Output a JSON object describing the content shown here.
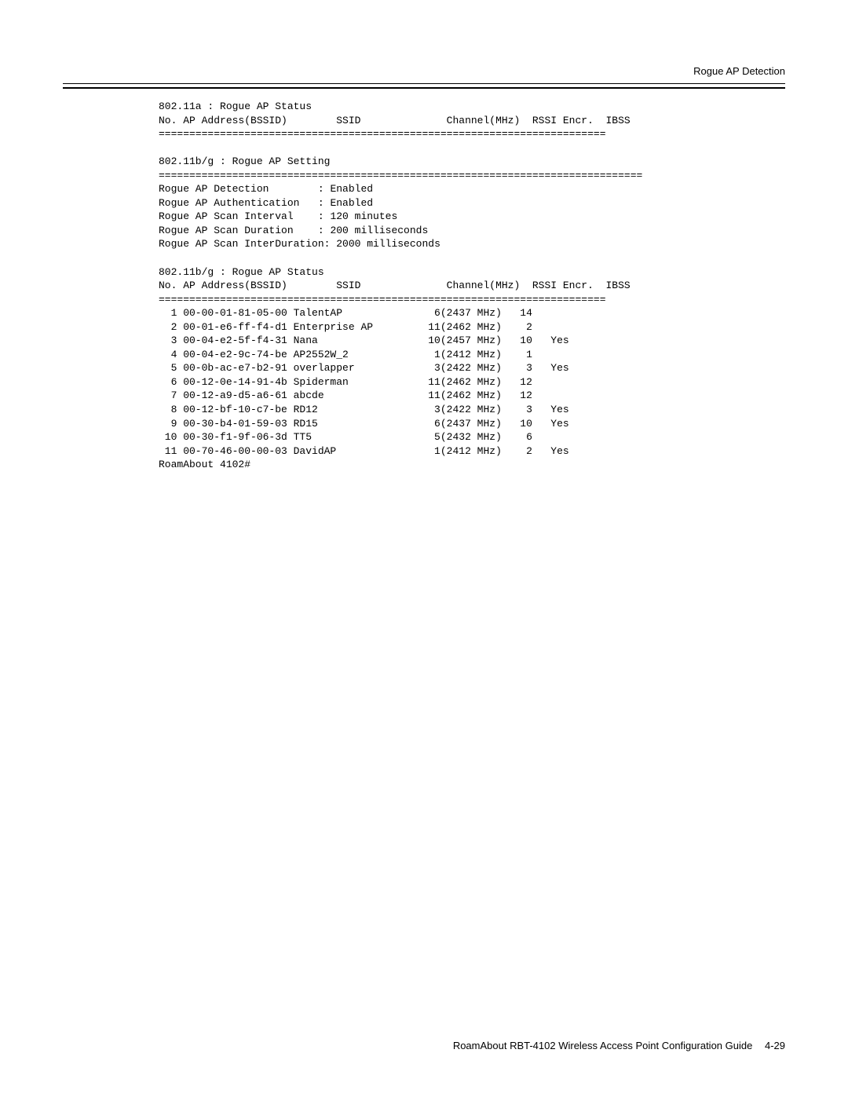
{
  "header": {
    "title": "Rogue AP Detection"
  },
  "terminal": {
    "section_11a": {
      "title": "802.11a : Rogue AP Status",
      "header_line": "No. AP Address(BSSID)        SSID              Channel(MHz)  RSSI Encr.  IBSS",
      "divider": "========================================================================="
    },
    "section_setting": {
      "title": "802.11b/g : Rogue AP Setting",
      "divider": "===============================================================================",
      "rows": [
        {
          "label": "Rogue AP Detection        ",
          "value": ": Enabled"
        },
        {
          "label": "Rogue AP Authentication   ",
          "value": ": Enabled"
        },
        {
          "label": "Rogue AP Scan Interval    ",
          "value": ": 120 minutes"
        },
        {
          "label": "Rogue AP Scan Duration    ",
          "value": ": 200 milliseconds"
        },
        {
          "label": "Rogue AP Scan InterDuration",
          "value": ": 2000 milliseconds"
        }
      ]
    },
    "section_11bg": {
      "title": "802.11b/g : Rogue AP Status",
      "header_line": "No. AP Address(BSSID)        SSID              Channel(MHz)  RSSI Encr.  IBSS",
      "divider": "=========================================================================",
      "rows": [
        {
          "no": "1",
          "bssid": "00-00-01-81-05-00",
          "ssid": "TalentAP",
          "channel": "6(2437 MHz)",
          "rssi": "14",
          "encr": ""
        },
        {
          "no": "2",
          "bssid": "00-01-e6-ff-f4-d1",
          "ssid": "Enterprise AP",
          "channel": "11(2462 MHz)",
          "rssi": "2",
          "encr": ""
        },
        {
          "no": "3",
          "bssid": "00-04-e2-5f-f4-31",
          "ssid": "Nana",
          "channel": "10(2457 MHz)",
          "rssi": "10",
          "encr": "Yes"
        },
        {
          "no": "4",
          "bssid": "00-04-e2-9c-74-be",
          "ssid": "AP2552W_2",
          "channel": "1(2412 MHz)",
          "rssi": "1",
          "encr": ""
        },
        {
          "no": "5",
          "bssid": "00-0b-ac-e7-b2-91",
          "ssid": "overlapper",
          "channel": "3(2422 MHz)",
          "rssi": "3",
          "encr": "Yes"
        },
        {
          "no": "6",
          "bssid": "00-12-0e-14-91-4b",
          "ssid": "Spiderman",
          "channel": "11(2462 MHz)",
          "rssi": "12",
          "encr": ""
        },
        {
          "no": "7",
          "bssid": "00-12-a9-d5-a6-61",
          "ssid": "abcde",
          "channel": "11(2462 MHz)",
          "rssi": "12",
          "encr": ""
        },
        {
          "no": "8",
          "bssid": "00-12-bf-10-c7-be",
          "ssid": "RD12",
          "channel": "3(2422 MHz)",
          "rssi": "3",
          "encr": "Yes"
        },
        {
          "no": "9",
          "bssid": "00-30-b4-01-59-03",
          "ssid": "RD15",
          "channel": "6(2437 MHz)",
          "rssi": "10",
          "encr": "Yes"
        },
        {
          "no": "10",
          "bssid": "00-30-f1-9f-06-3d",
          "ssid": "TT5",
          "channel": "5(2432 MHz)",
          "rssi": "6",
          "encr": ""
        },
        {
          "no": "11",
          "bssid": "00-70-46-00-00-03",
          "ssid": "DavidAP",
          "channel": "1(2412 MHz)",
          "rssi": "2",
          "encr": "Yes"
        }
      ]
    },
    "prompt": "RoamAbout 4102#"
  },
  "footer": {
    "text": "RoamAbout RBT-4102 Wireless Access Point Configuration Guide",
    "page": "4-29"
  }
}
